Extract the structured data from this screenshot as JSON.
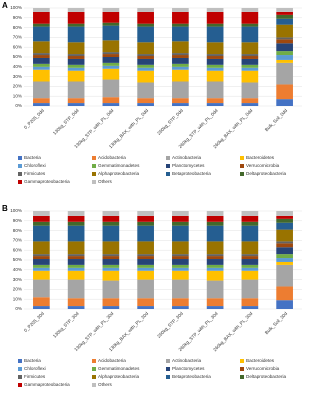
{
  "chart_data": [
    {
      "type": "bar",
      "stacked": true,
      "panel_label": "A",
      "categories": [
        "0_P205_0dd",
        "130kg_STP_0dd",
        "130kg_STP_with_PL_0dd",
        "130kg_BAX_with_PL_0dd",
        "260kg_STP_0dd",
        "260kg_STP_with_PL_0dd",
        "260kg_BAX_with_PL_0dd",
        "Bulk_Soil_0dd"
      ],
      "ylim": [
        0,
        100
      ],
      "yticks": [
        {
          "value": 0,
          "label": "0%"
        },
        {
          "value": 10,
          "label": "10%"
        },
        {
          "value": 20,
          "label": "20%"
        },
        {
          "value": 30,
          "label": "30%"
        },
        {
          "value": 40,
          "label": "40%"
        },
        {
          "value": 50,
          "label": "50%"
        },
        {
          "value": 60,
          "label": "60%"
        },
        {
          "value": 70,
          "label": "70%"
        },
        {
          "value": 80,
          "label": "80%"
        },
        {
          "value": 90,
          "label": "90%"
        },
        {
          "value": 100,
          "label": "100%"
        }
      ],
      "series": [
        {
          "name": "Bacteria",
          "color": "#4472c4",
          "values": [
            3,
            3,
            3,
            3,
            3,
            3,
            3,
            7
          ]
        },
        {
          "name": "Acidobacteria",
          "color": "#ed7d31",
          "values": [
            5,
            5,
            6,
            5,
            5,
            5,
            5,
            15
          ]
        },
        {
          "name": "Actinobacteria",
          "color": "#a5a5a5",
          "values": [
            17,
            17,
            18,
            16,
            17,
            17,
            16,
            22
          ]
        },
        {
          "name": "Bacteroidetes",
          "color": "#ffc000",
          "values": [
            12,
            11,
            11,
            12,
            12,
            11,
            12,
            3
          ]
        },
        {
          "name": "Chloroflexi",
          "color": "#5b9bd5",
          "values": [
            3,
            3,
            3,
            3,
            3,
            3,
            3,
            5
          ]
        },
        {
          "name": "Gemmatimonadetes",
          "color": "#70ad47",
          "values": [
            3,
            3,
            3,
            3,
            3,
            3,
            3,
            4
          ]
        },
        {
          "name": "Planctomycetes",
          "color": "#264478",
          "values": [
            6,
            6,
            6,
            6,
            6,
            6,
            6,
            8
          ]
        },
        {
          "name": "Verrucomicrobia",
          "color": "#9e480e",
          "values": [
            3,
            3,
            3,
            3,
            3,
            3,
            3,
            4
          ]
        },
        {
          "name": "Firmicutes",
          "color": "#636363",
          "values": [
            2,
            2,
            2,
            2,
            2,
            2,
            2,
            2
          ]
        },
        {
          "name": "Alphaproteobacteria",
          "color": "#997300",
          "values": [
            12,
            12,
            12,
            12,
            12,
            12,
            12,
            13
          ]
        },
        {
          "name": "Betaproteobacteria",
          "color": "#255e91",
          "values": [
            15,
            16,
            15,
            16,
            15,
            16,
            16,
            6
          ]
        },
        {
          "name": "Deltaproteobacteria",
          "color": "#43682b",
          "values": [
            3,
            3,
            3,
            3,
            3,
            3,
            3,
            4
          ]
        },
        {
          "name": "Gammaproteobacteria",
          "color": "#c00000",
          "values": [
            12,
            12,
            11,
            12,
            12,
            12,
            12,
            3
          ]
        },
        {
          "name": "Others",
          "color": "#bfbfbf",
          "values": [
            4,
            4,
            4,
            4,
            4,
            4,
            4,
            4
          ]
        }
      ]
    },
    {
      "type": "bar",
      "stacked": true,
      "panel_label": "B",
      "categories": [
        "0_P205_30d",
        "130kg_STP_30d",
        "130kg_STP_with_PL_30d",
        "130kg_BAX_with_PL_30d",
        "260kg_STP_30d",
        "260kg_STP_with_PL_30d",
        "260kg_BAX_with_PL_30d",
        "Bulk_Soil_30d"
      ],
      "ylim": [
        0,
        100
      ],
      "yticks": [
        {
          "value": 0,
          "label": "0%"
        },
        {
          "value": 10,
          "label": "10%"
        },
        {
          "value": 20,
          "label": "20%"
        },
        {
          "value": 30,
          "label": "30%"
        },
        {
          "value": 40,
          "label": "40%"
        },
        {
          "value": 50,
          "label": "50%"
        },
        {
          "value": 60,
          "label": "60%"
        },
        {
          "value": 70,
          "label": "70%"
        },
        {
          "value": 80,
          "label": "80%"
        },
        {
          "value": 90,
          "label": "90%"
        },
        {
          "value": 100,
          "label": "100%"
        }
      ],
      "series": [
        {
          "name": "Bacteria",
          "color": "#4472c4",
          "values": [
            3,
            3,
            3,
            3,
            3,
            3,
            3,
            9
          ]
        },
        {
          "name": "Acidobacteria",
          "color": "#ed7d31",
          "values": [
            9,
            8,
            8,
            8,
            8,
            8,
            8,
            14
          ]
        },
        {
          "name": "Actinobacteria",
          "color": "#a5a5a5",
          "values": [
            18,
            19,
            18,
            19,
            19,
            18,
            19,
            22
          ]
        },
        {
          "name": "Bacteroidetes",
          "color": "#ffc000",
          "values": [
            9,
            9,
            10,
            9,
            9,
            10,
            9,
            3
          ]
        },
        {
          "name": "Chloroflexi",
          "color": "#5b9bd5",
          "values": [
            3,
            3,
            3,
            3,
            3,
            3,
            3,
            4
          ]
        },
        {
          "name": "Gemmatimonadetes",
          "color": "#70ad47",
          "values": [
            3,
            3,
            3,
            3,
            3,
            3,
            3,
            4
          ]
        },
        {
          "name": "Planctomycetes",
          "color": "#264478",
          "values": [
            6,
            6,
            6,
            6,
            6,
            6,
            6,
            7
          ]
        },
        {
          "name": "Verrucomicrobia",
          "color": "#9e480e",
          "values": [
            3,
            3,
            3,
            3,
            3,
            3,
            3,
            4
          ]
        },
        {
          "name": "Firmicutes",
          "color": "#636363",
          "values": [
            2,
            2,
            2,
            2,
            2,
            2,
            2,
            2
          ]
        },
        {
          "name": "Alphaproteobacteria",
          "color": "#997300",
          "values": [
            13,
            13,
            13,
            13,
            13,
            13,
            13,
            12
          ]
        },
        {
          "name": "Betaproteobacteria",
          "color": "#255e91",
          "values": [
            16,
            16,
            16,
            16,
            16,
            16,
            16,
            7
          ]
        },
        {
          "name": "Deltaproteobacteria",
          "color": "#43682b",
          "values": [
            4,
            4,
            4,
            4,
            4,
            4,
            4,
            4
          ]
        },
        {
          "name": "Gammaproteobacteria",
          "color": "#c00000",
          "values": [
            6,
            6,
            6,
            6,
            6,
            6,
            6,
            3
          ]
        },
        {
          "name": "Others",
          "color": "#bfbfbf",
          "values": [
            5,
            5,
            5,
            5,
            5,
            5,
            5,
            5
          ]
        }
      ]
    }
  ]
}
